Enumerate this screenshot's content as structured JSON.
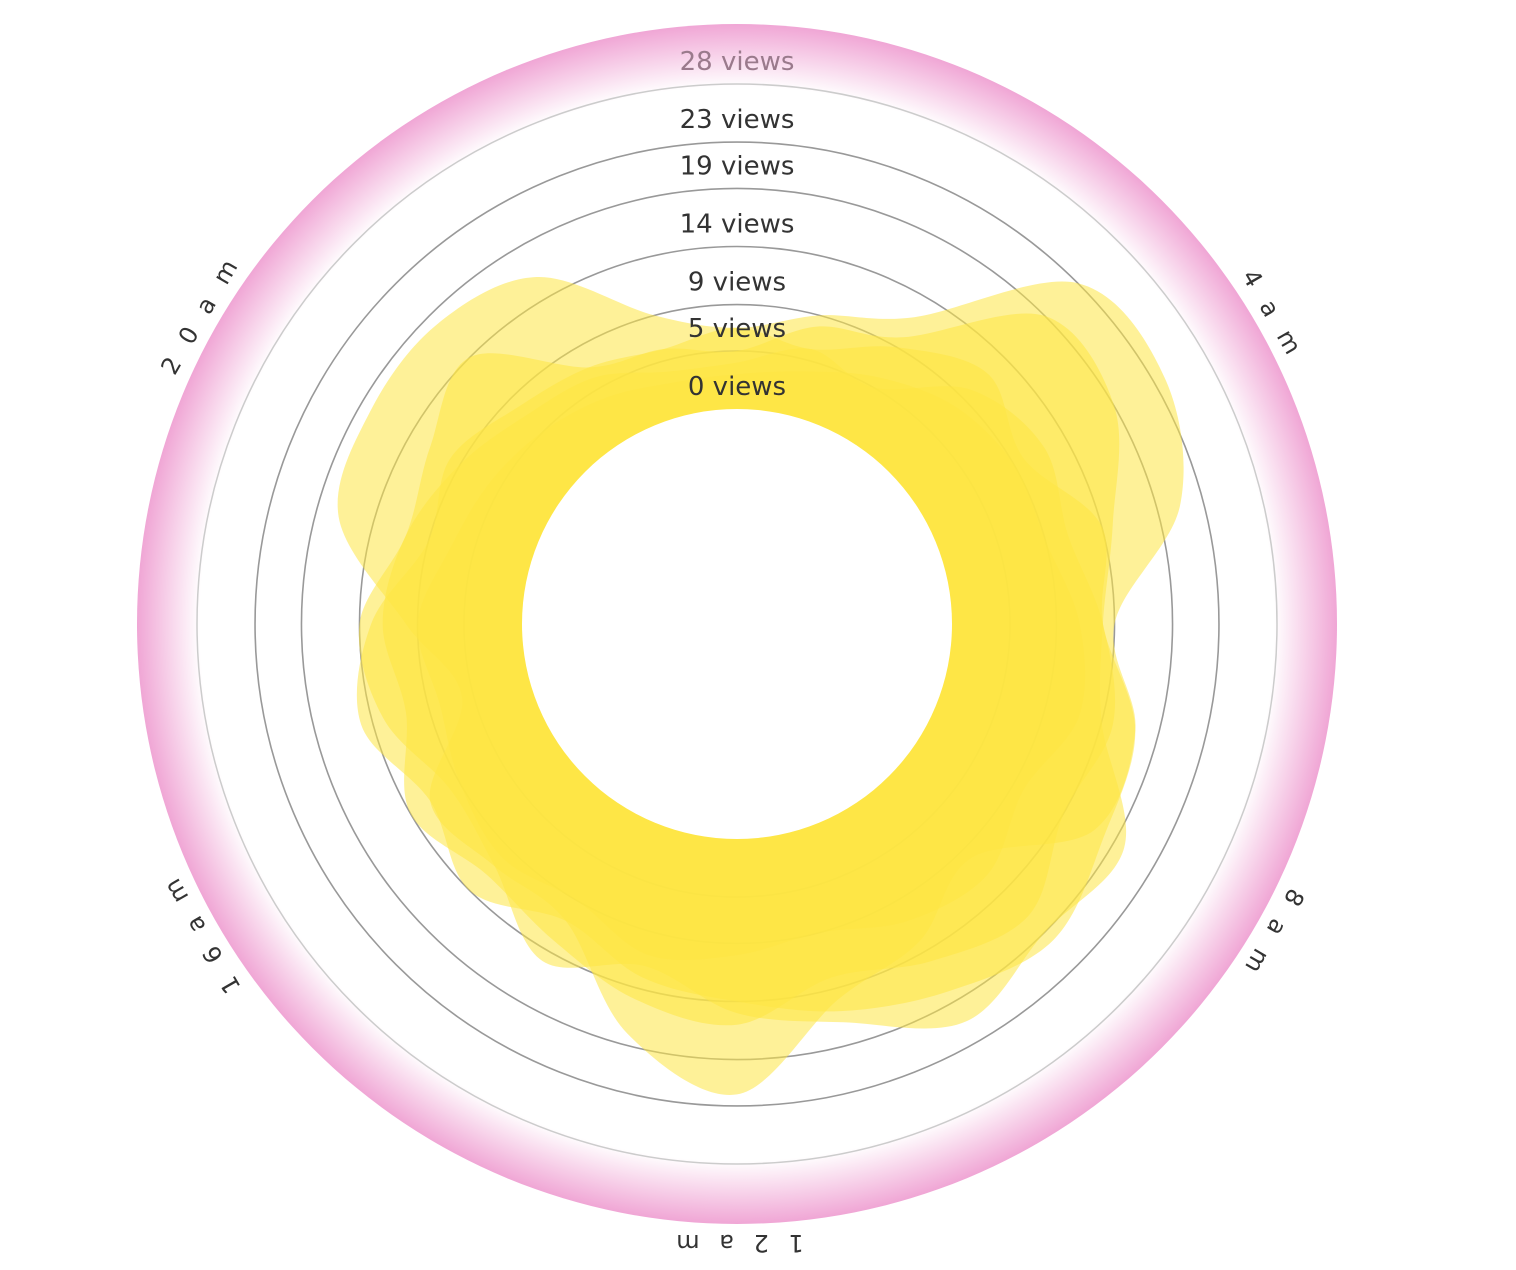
{
  "chart_data": {
    "type": "radial-area",
    "ring_labels": [
      "0 views",
      "5 views",
      "9 views",
      "14 views",
      "19 views",
      "23 views",
      "28 views"
    ],
    "ring_values": [
      0,
      5,
      9,
      14,
      19,
      23,
      28
    ],
    "r_range": [
      0,
      28
    ],
    "hour_labels": [
      {
        "text": "4 a m",
        "hour": 4
      },
      {
        "text": "8 a m",
        "hour": 8
      },
      {
        "text": "1 2 a m",
        "hour": 12
      },
      {
        "text": "1 6 a m",
        "hour": 16
      },
      {
        "text": "2 0 a m",
        "hour": 20
      }
    ],
    "series_values": [
      [
        7,
        9,
        12,
        23,
        24,
        21,
        14,
        17,
        17,
        10,
        13,
        15,
        22,
        18,
        11,
        11,
        12,
        6,
        10,
        17,
        18,
        18,
        16,
        9
      ],
      [
        5,
        8,
        10,
        19,
        19,
        15,
        13,
        14,
        20,
        19,
        21,
        17,
        15,
        12,
        15,
        11,
        10,
        13,
        14,
        11,
        12,
        14,
        7,
        6
      ],
      [
        7,
        6,
        9,
        12,
        10,
        14,
        13,
        17,
        18,
        20,
        18,
        16,
        14,
        13,
        11,
        14,
        12,
        15,
        13,
        9,
        10,
        8,
        7,
        6
      ],
      [
        4,
        6,
        5,
        10,
        12,
        11,
        13,
        15,
        14,
        17,
        15,
        13,
        16,
        15,
        13,
        12,
        14,
        11,
        12,
        11,
        9,
        7,
        6,
        4
      ],
      [
        3,
        4,
        6,
        8,
        9,
        9,
        11,
        12,
        10,
        12,
        11,
        9,
        10,
        11,
        9,
        10,
        9,
        8,
        9,
        7,
        6,
        5,
        4,
        3
      ]
    ],
    "colors": {
      "fill": "#fee643",
      "ring_outer": "#f0a6d5",
      "ring_inner": "#ffffff",
      "grid": "#999999",
      "grid_light": "#cccccc",
      "label": "#333333",
      "label_top": "#9a7a8c"
    }
  }
}
